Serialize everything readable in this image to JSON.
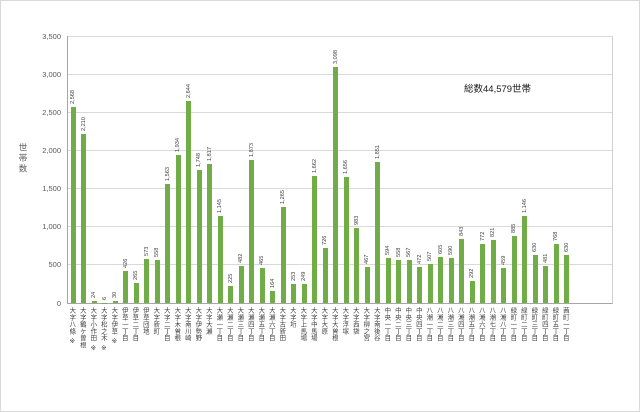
{
  "chart_data": {
    "type": "bar",
    "title": "",
    "ylabel": "世帯数",
    "annotation": "総数44,579世帯",
    "bar_color": "#70AD47",
    "grid_color": "#D9D9D9",
    "axis_color": "#A6A6A6",
    "label_color": "#404040",
    "ylim": [
      0,
      3500
    ],
    "ytick_interval": 500,
    "ytick_labels": [
      "0",
      "500",
      "1,000",
      "1,500",
      "2,000",
      "2,500",
      "3,000",
      "3,500"
    ],
    "legend": "none",
    "grid": "horizontal",
    "categories": [
      "大字八條 ※",
      "大字鶴ケ曽根",
      "大字小作田 ※",
      "大字松之木 ※",
      "大字伊草 ※",
      "伊草一丁目",
      "伊草二丁目",
      "伊草団地",
      "大字新町",
      "大字二丁目",
      "大字木曽根",
      "大字南川崎",
      "大字伊勢野",
      "大字大瀬",
      "大瀬一丁目",
      "大瀬二丁目",
      "大瀬三丁目",
      "大瀬四丁目",
      "大瀬五丁目",
      "大瀬六丁目",
      "大字古新田",
      "大字垳",
      "大字上馬場",
      "大字中馬場",
      "大字大原",
      "大字大曽根",
      "大字浮塚",
      "大字西袋",
      "大字柳之宮",
      "大字南後谷",
      "中央一丁目",
      "中央二丁目",
      "中央三丁目",
      "中央四丁目",
      "八潮一丁目",
      "八潮二丁目",
      "八潮三丁目",
      "八潮四丁目",
      "八潮五丁目",
      "八潮六丁目",
      "八潮七丁目",
      "八潮八丁目",
      "緑町一丁目",
      "緑町二丁目",
      "緑町三丁目",
      "緑町四丁目",
      "緑町五丁目",
      "茜町一丁目"
    ],
    "values": [
      2568,
      2210,
      24,
      6,
      30,
      426,
      265,
      573,
      558,
      1563,
      1934,
      2644,
      1748,
      1817,
      1145,
      225,
      482,
      1873,
      465,
      164,
      1265,
      253,
      249,
      1662,
      726,
      3098,
      1656,
      983,
      467,
      1851,
      594,
      558,
      567,
      472,
      507,
      605,
      590,
      843,
      292,
      772,
      821,
      459,
      885,
      1146,
      630,
      481,
      768,
      630
    ]
  }
}
